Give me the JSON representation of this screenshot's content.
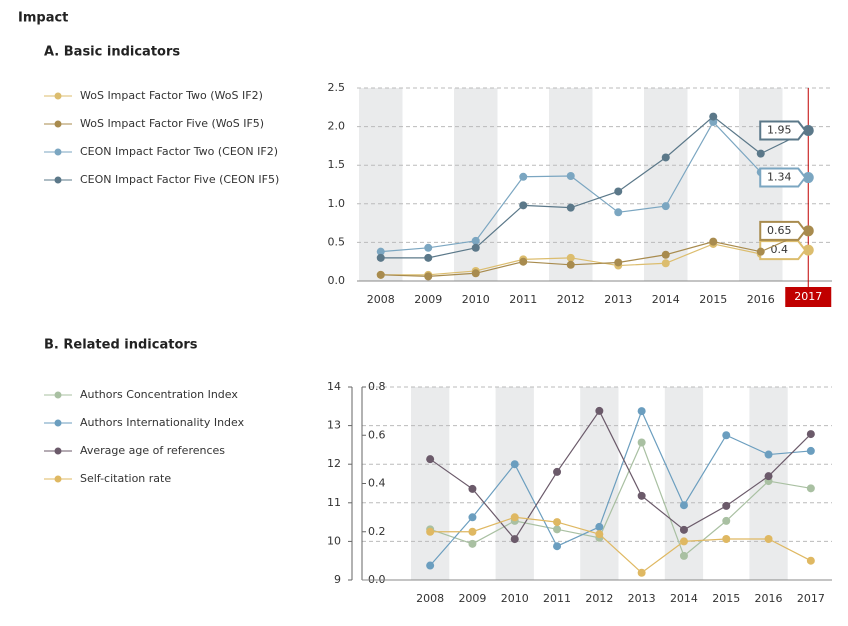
{
  "page_title": "Impact",
  "chart_data": [
    {
      "type": "line",
      "title": "A. Basic indicators",
      "categories": [
        "2008",
        "2009",
        "2010",
        "2011",
        "2012",
        "2013",
        "2014",
        "2015",
        "2016",
        "2017"
      ],
      "highlight_category": "2017",
      "ylim": [
        0,
        2.5
      ],
      "yticks": [
        {
          "value": 0,
          "label": "0.0"
        },
        0.5,
        {
          "value": 1,
          "label": "1.0"
        },
        1.5,
        {
          "value": 2,
          "label": "2.0"
        },
        2.5
      ],
      "grid": true,
      "series": [
        {
          "name": "WoS Impact Factor Two (WoS IF2)",
          "color": "#dcbd6e",
          "values": [
            0.08,
            0.08,
            0.13,
            0.28,
            0.3,
            0.2,
            0.23,
            0.48,
            0.35,
            0.4
          ]
        },
        {
          "name": "WoS Impact Factor Five (WoS IF5)",
          "color": "#a88b4e",
          "values": [
            0.08,
            0.06,
            0.1,
            0.25,
            0.21,
            0.24,
            0.34,
            0.51,
            0.38,
            0.65
          ]
        },
        {
          "name": "CEON Impact Factor Two (CEON IF2)",
          "color": "#7ba6c1",
          "values": [
            0.38,
            0.43,
            0.52,
            1.35,
            1.36,
            0.89,
            0.97,
            2.06,
            1.41,
            1.34
          ]
        },
        {
          "name": "CEON Impact Factor Five (CEON IF5)",
          "color": "#5b7889",
          "values": [
            0.3,
            0.3,
            0.43,
            0.98,
            0.95,
            1.16,
            1.6,
            2.13,
            1.65,
            1.95
          ]
        }
      ]
    },
    {
      "type": "line",
      "title": "B. Related indicators",
      "categories": [
        "2008",
        "2009",
        "2010",
        "2011",
        "2012",
        "2013",
        "2014",
        "2015",
        "2016",
        "2017"
      ],
      "ylim": [
        9,
        14
      ],
      "yticks": [
        9,
        10,
        11,
        12,
        13,
        14
      ],
      "y2lim": [
        0,
        0.8
      ],
      "y2ticks": [
        {
          "value": 0,
          "label": "0.0"
        },
        0.2,
        0.4,
        0.6,
        0.8
      ],
      "grid": true,
      "series": [
        {
          "name": "Authors Concentration Index",
          "color": "#a9c0a2",
          "axis": "y2",
          "values": [
            0.21,
            0.15,
            0.245,
            0.21,
            0.175,
            0.57,
            0.1,
            0.245,
            0.41,
            0.38
          ]
        },
        {
          "name": "Authors Internationality Index",
          "color": "#6b9ebf",
          "axis": "y2",
          "values": [
            0.06,
            0.26,
            0.48,
            0.14,
            0.22,
            0.7,
            0.31,
            0.6,
            0.52,
            0.535
          ]
        },
        {
          "name": "Average age of references",
          "color": "#6b5a6a",
          "values": [
            12.13,
            11.36,
            10.06,
            11.8,
            13.38,
            11.18,
            10.3,
            10.92,
            11.69,
            12.78
          ]
        },
        {
          "name": "Self-citation rate",
          "color": "#dfb862",
          "axis": "y2",
          "values": [
            0.2,
            0.2,
            0.26,
            0.24,
            0.19,
            0.03,
            0.16,
            0.17,
            0.17,
            0.08
          ]
        }
      ]
    }
  ]
}
